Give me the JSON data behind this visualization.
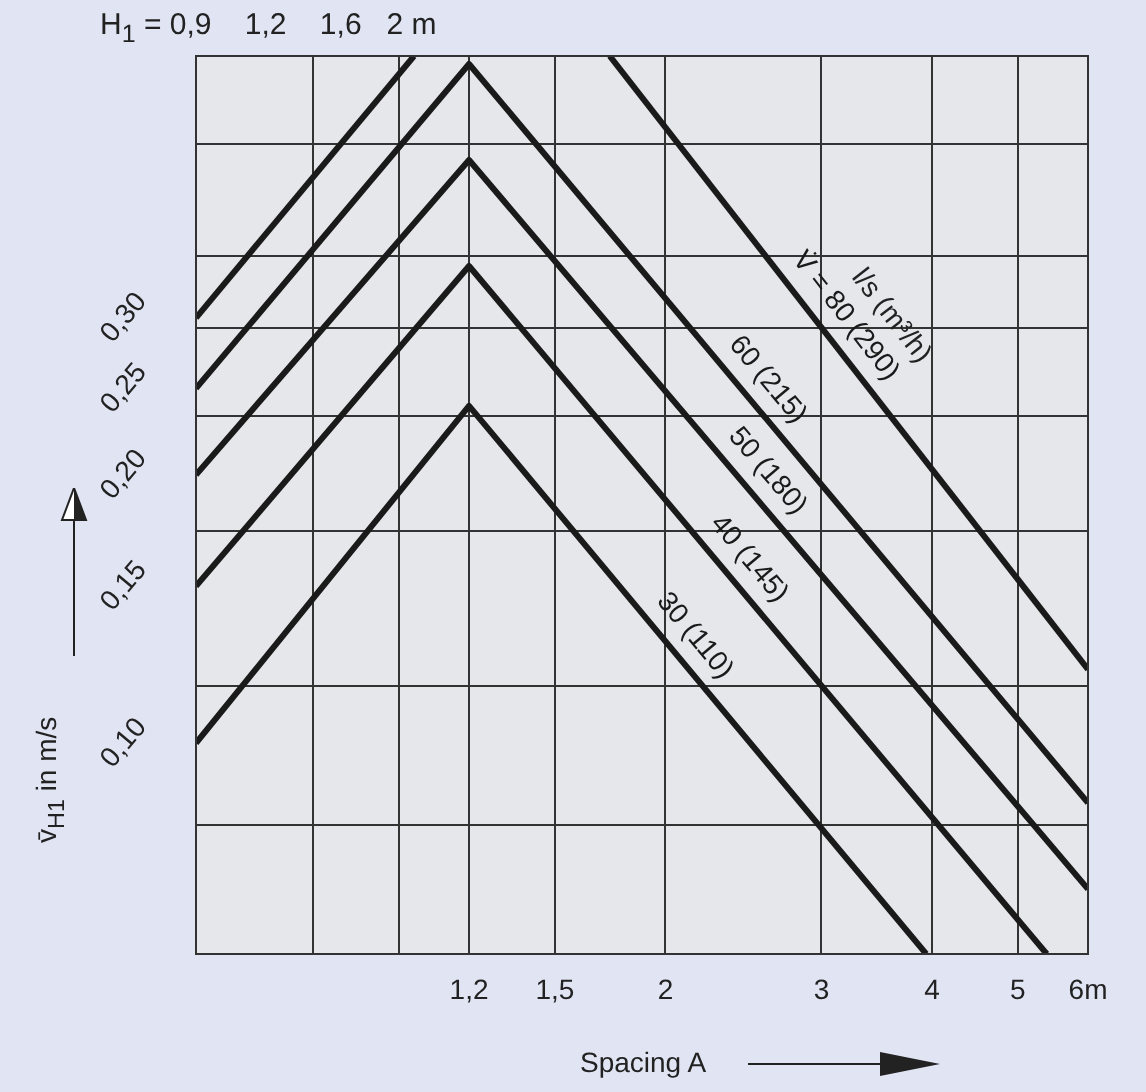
{
  "chart_data": {
    "type": "line",
    "xlabel": "Spacing A",
    "ylabel": "v̄$_{H1}$ in m/s",
    "log": "xy",
    "xlim": [
      0.59,
      6
    ],
    "xticks": [
      {
        "value": 0.8,
        "label": null
      },
      {
        "value": 1,
        "label": null
      },
      {
        "value": 1.2,
        "label": "1,2"
      },
      {
        "value": 1.5,
        "label": "1,5"
      },
      {
        "value": 2,
        "label": "2"
      },
      {
        "value": 3,
        "label": "3"
      },
      {
        "value": 4,
        "label": "4"
      },
      {
        "value": 5,
        "label": "5"
      },
      {
        "value": 6,
        "label": "6m"
      }
    ],
    "ylim": [
      0.058,
      0.59
    ],
    "yticks": [
      {
        "value": 0.081,
        "label": null
      },
      {
        "value": 0.1,
        "label": "0,10"
      },
      {
        "value": 0.116,
        "label": null
      },
      {
        "value": 0.15,
        "label": "0,15"
      },
      {
        "value": 0.173,
        "label": null
      },
      {
        "value": 0.2,
        "label": "0,20"
      },
      {
        "value": 0.233,
        "label": null
      },
      {
        "value": 0.25,
        "label": "0,25"
      },
      {
        "value": 0.292,
        "label": null
      },
      {
        "value": 0.3,
        "label": "0,30"
      },
      {
        "value": 0.352,
        "label": null
      },
      {
        "value": 0.47,
        "label": null
      }
    ],
    "grid": true,
    "legend": false,
    "marker": "none",
    "line_style": "solid",
    "series": [
      {
        "name": "30 (110)",
        "color": "#1a1a1a",
        "x": [
          0.59,
          1.2,
          3.94
        ],
        "values": [
          0.1,
          0.239,
          0.058
        ]
      },
      {
        "name": "40 (145)",
        "color": "#1a1a1a",
        "x": [
          0.59,
          1.2,
          5.39
        ],
        "values": [
          0.15,
          0.343,
          0.058
        ]
      },
      {
        "name": "50 (180)",
        "color": "#1a1a1a",
        "x": [
          0.59,
          1.2,
          6
        ],
        "values": [
          0.2,
          0.451,
          0.0686
        ]
      },
      {
        "name": "60 (215)",
        "color": "#1a1a1a",
        "x": [
          0.59,
          1.2,
          6
        ],
        "values": [
          0.25,
          0.578,
          0.0857
        ]
      },
      {
        "color": "#1a1a1a",
        "x": [
          0.59,
          1.04
        ],
        "values": [
          0.3,
          0.59
        ]
      },
      {
        "name": "V̇ = 80 (290)",
        "color": "#1a1a1a",
        "x": [
          1.73,
          6
        ],
        "values": [
          0.59,
          0.121
        ]
      }
    ],
    "annotations": [
      "H$_{1}$ = 0,9    1,2    1,6   2 m",
      "l/s (m³/h)"
    ]
  }
}
